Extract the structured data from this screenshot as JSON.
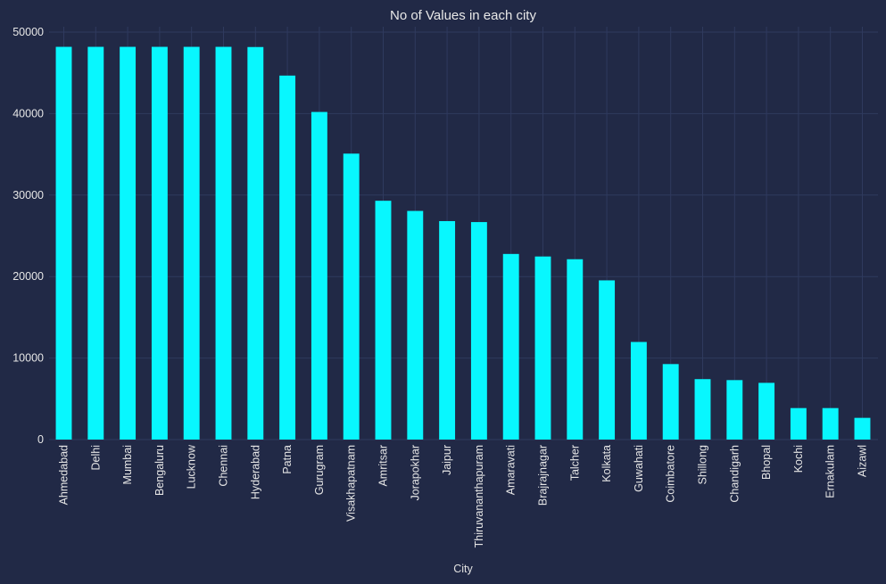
{
  "chart_data": {
    "type": "bar",
    "title": "No of Values in each city",
    "xlabel": "City",
    "ylabel": "",
    "ylim": [
      0,
      50000
    ],
    "yticks": [
      0,
      10000,
      20000,
      30000,
      40000,
      50000
    ],
    "ytick_labels": [
      "0",
      "10000",
      "20000",
      "30000",
      "40000",
      "50000"
    ],
    "grid": true,
    "categories": [
      "Ahmedabad",
      "Delhi",
      "Mumbai",
      "Bengaluru",
      "Lucknow",
      "Chennai",
      "Hyderabad",
      "Patna",
      "Gurugram",
      "Visakhapatnam",
      "Amritsar",
      "Jorapokhar",
      "Jaipur",
      "Thiruvananthapuram",
      "Amaravati",
      "Brajrajnagar",
      "Talcher",
      "Kolkata",
      "Guwahati",
      "Coimbatore",
      "Shillong",
      "Chandigarh",
      "Bhopal",
      "Kochi",
      "Ernakulam",
      "Aizawl"
    ],
    "values": [
      48192,
      48192,
      48192,
      48192,
      48192,
      48192,
      48168,
      44664,
      40200,
      35088,
      29304,
      28056,
      26808,
      26688,
      22776,
      22464,
      22128,
      19536,
      11976,
      9264,
      7416,
      7296,
      6960,
      3864,
      3864,
      2664
    ],
    "colors": {
      "background": "#212946",
      "bar": "#08F7FE",
      "grid": "#2f3a5e",
      "text": "#e6e6e6"
    }
  }
}
